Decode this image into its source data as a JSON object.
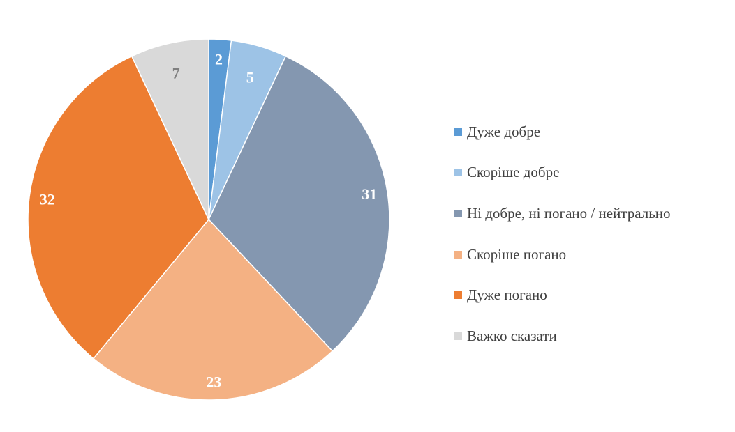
{
  "chart_data": {
    "type": "pie",
    "title": "",
    "start_angle_deg": 0,
    "direction": "clockwise",
    "legend_position": "right",
    "slices": [
      {
        "name": "Дуже добре",
        "value": 2,
        "label": "2",
        "color": "#5b9bd5",
        "label_color": "#ffffff"
      },
      {
        "name": "Скоріше добре",
        "value": 5,
        "label": "5",
        "color": "#9dc3e6",
        "label_color": "#ffffff"
      },
      {
        "name": "Ні добре, ні погано / нейтрально",
        "value": 31,
        "label": "31",
        "color": "#8497b0",
        "label_color": "#ffffff"
      },
      {
        "name": "Скоріше погано",
        "value": 23,
        "label": "23",
        "color": "#f4b183",
        "label_color": "#ffffff"
      },
      {
        "name": "Дуже погано",
        "value": 32,
        "label": "32",
        "color": "#ed7d31",
        "label_color": "#ffffff"
      },
      {
        "name": "Важко сказати",
        "value": 7,
        "label": "7",
        "color": "#d9d9d9",
        "label_color": "#7f7f7f"
      }
    ]
  }
}
